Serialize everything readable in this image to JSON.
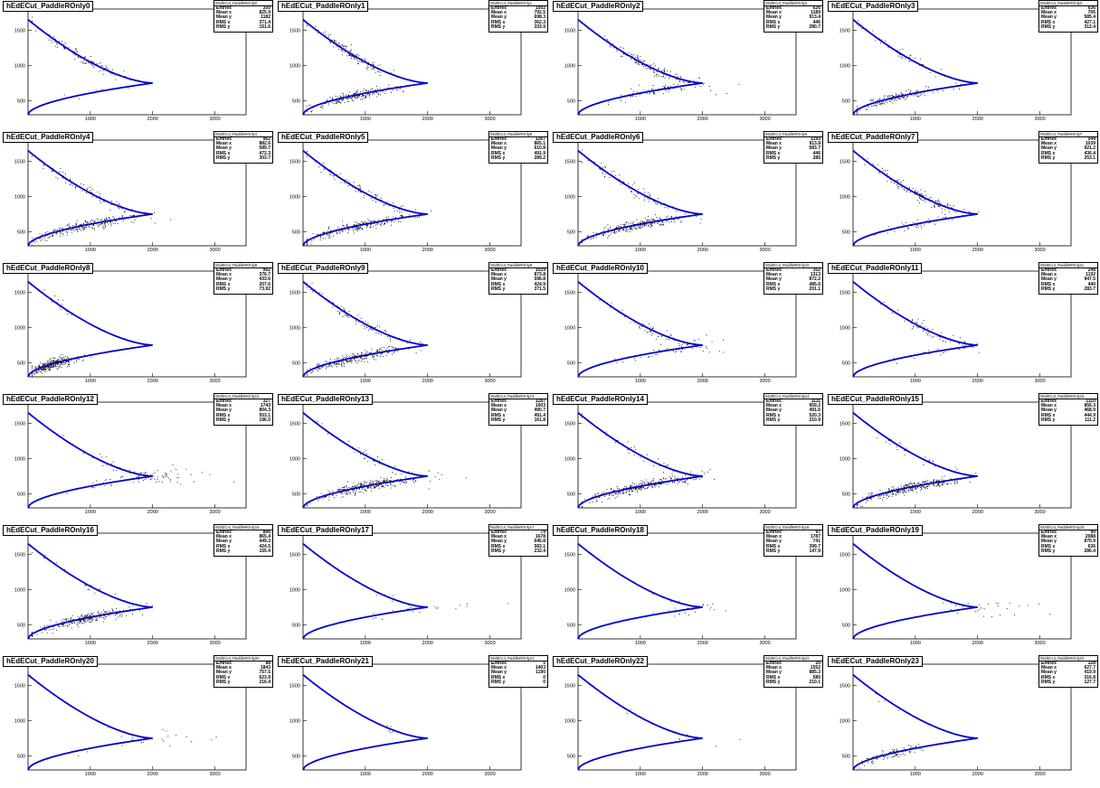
{
  "axis": {
    "x_ticks": [
      1000,
      2000,
      3000
    ],
    "y_ticks": [
      500,
      1000,
      1500
    ],
    "xlim": [
      0,
      3500
    ],
    "ylim": [
      300,
      1800
    ]
  },
  "stat_labels": {
    "entries": "Entries",
    "mean_x": "Mean x",
    "mean_y": "Mean y",
    "rms_x": "RMS x",
    "rms_y": "RMS y"
  },
  "colors": {
    "curve": "#0000cc",
    "points": "#000000",
    "frame": "#000000"
  },
  "chart_data": [
    {
      "type": "scatter",
      "title": "hEdECut_PaddleROnly0",
      "stats_name": "hEdECut_PaddleROnly0",
      "entries": "350",
      "mean_x": "825.9",
      "mean_y": "1182",
      "rms_x": "371.4",
      "rms_y": "151.6"
    },
    {
      "type": "scatter",
      "title": "hEdECut_PaddleROnly1",
      "stats_name": "hEdECut_PaddleROnly1",
      "entries": "1502",
      "mean_x": "792.5",
      "mean_y": "698.3",
      "rms_x": "362.3",
      "rms_y": "333.9"
    },
    {
      "type": "scatter",
      "title": "hEdECut_PaddleROnly2",
      "stats_name": "hEdECut_PaddleROnly2",
      "entries": "626",
      "mean_x": "1189",
      "mean_y": "913.4",
      "rms_x": "446",
      "rms_y": "280.7"
    },
    {
      "type": "scatter",
      "title": "hEdECut_PaddleROnly3",
      "stats_name": "hEdECut_PaddleROnly3",
      "entries": "636",
      "mean_x": "706",
      "mean_y": "585.4",
      "rms_x": "427.1",
      "rms_y": "312.4"
    },
    {
      "type": "scatter",
      "title": "hEdECut_PaddleROnly4",
      "stats_name": "hEdECut_PaddleROnly4",
      "entries": "962",
      "mean_x": "882.6",
      "mean_y": "589.7",
      "rms_x": "472.3",
      "rms_y": "303.7"
    },
    {
      "type": "scatter",
      "title": "hEdECut_PaddleROnly5",
      "stats_name": "hEdECut_PaddleROnly5",
      "entries": "1267",
      "mean_x": "865.1",
      "mean_y": "610.8",
      "rms_x": "491.9",
      "rms_y": "289.2"
    },
    {
      "type": "scatter",
      "title": "hEdECut_PaddleROnly6",
      "stats_name": "hEdECut_PaddleROnly6",
      "entries": "1193",
      "mean_x": "913.8",
      "mean_y": "583.7",
      "rms_x": "446",
      "rms_y": "285"
    },
    {
      "type": "scatter",
      "title": "hEdECut_PaddleROnly7",
      "stats_name": "hEdECut_PaddleROnly7",
      "entries": "544",
      "mean_x": "1039",
      "mean_y": "921.2",
      "rms_x": "436.4",
      "rms_y": "253.1"
    },
    {
      "type": "scatter",
      "title": "hEdECut_PaddleROnly8",
      "stats_name": "hEdECut_PaddleROnly8",
      "entries": "992",
      "mean_x": "376.7",
      "mean_y": "433.6",
      "rms_x": "207.6",
      "rms_y": "73.92"
    },
    {
      "type": "scatter",
      "title": "hEdECut_PaddleROnly9",
      "stats_name": "hEdECut_PaddleROnly9",
      "entries": "1029",
      "mean_x": "873.8",
      "mean_y": "596.8",
      "rms_x": "424.9",
      "rms_y": "371.5"
    },
    {
      "type": "scatter",
      "title": "hEdECut_PaddleROnly10",
      "stats_name": "hEdECut_PaddleROnly10",
      "entries": "352",
      "mean_x": "1313",
      "mean_y": "872.2",
      "rms_x": "485.6",
      "rms_y": "201.1"
    },
    {
      "type": "scatter",
      "title": "hEdECut_PaddleROnly11",
      "stats_name": "hEdECut_PaddleROnly11",
      "entries": "248",
      "mean_x": "1192",
      "mean_y": "947.5",
      "rms_x": "440",
      "rms_y": "283.7"
    },
    {
      "type": "scatter",
      "title": "hEdECut_PaddleROnly12",
      "stats_name": "hEdECut_PaddleROnly12",
      "entries": "327",
      "mean_x": "1743",
      "mean_y": "804.3",
      "rms_x": "553.1",
      "rms_y": "196.5"
    },
    {
      "type": "scatter",
      "title": "hEdECut_PaddleROnly13",
      "stats_name": "hEdECut_PaddleROnly13",
      "entries": "1287",
      "mean_x": "1003",
      "mean_y": "490.7",
      "rms_x": "491.4",
      "rms_y": "161.8"
    },
    {
      "type": "scatter",
      "title": "hEdECut_PaddleROnly14",
      "stats_name": "hEdECut_PaddleROnly14",
      "entries": "1111",
      "mean_x": "959.2",
      "mean_y": "491.6",
      "rms_x": "520.3",
      "rms_y": "210.9"
    },
    {
      "type": "scatter",
      "title": "hEdECut_PaddleROnly15",
      "stats_name": "hEdECut_PaddleROnly15",
      "entries": "1110",
      "mean_x": "856.3",
      "mean_y": "468.9",
      "rms_x": "444.9",
      "rms_y": "111.2"
    },
    {
      "type": "scatter",
      "title": "hEdECut_PaddleROnly16",
      "stats_name": "hEdECut_PaddleROnly16",
      "entries": "896",
      "mean_x": "865.4",
      "mean_y": "449.3",
      "rms_x": "424.5",
      "rms_y": "155.4"
    },
    {
      "type": "scatter",
      "title": "hEdECut_PaddleROnly17",
      "stats_name": "hEdECut_PaddleROnly17",
      "entries": "79",
      "mean_x": "1678",
      "mean_y": "646.8",
      "rms_x": "583.1",
      "rms_y": "232.4"
    },
    {
      "type": "scatter",
      "title": "hEdECut_PaddleROnly18",
      "stats_name": "hEdECut_PaddleROnly18",
      "entries": "97",
      "mean_x": "1787",
      "mean_y": "741",
      "rms_x": "399.7",
      "rms_y": "147.9"
    },
    {
      "type": "scatter",
      "title": "hEdECut_PaddleROnly19",
      "stats_name": "hEdECut_PaddleROnly19",
      "entries": "90",
      "mean_x": "2088",
      "mean_y": "870.9",
      "rms_x": "636",
      "rms_y": "286.4"
    },
    {
      "type": "scatter",
      "title": "hEdECut_PaddleROnly20",
      "stats_name": "hEdECut_PaddleROnly20",
      "entries": "88",
      "mean_x": "1843",
      "mean_y": "757.5",
      "rms_x": "623.9",
      "rms_y": "216.4"
    },
    {
      "type": "scatter",
      "title": "hEdECut_PaddleROnly21",
      "stats_name": "hEdECut_PaddleROnly21",
      "entries": "1",
      "mean_x": "1403",
      "mean_y": "1190",
      "rms_x": "0",
      "rms_y": "0"
    },
    {
      "type": "scatter",
      "title": "hEdECut_PaddleROnly22",
      "stats_name": "hEdECut_PaddleROnly22",
      "entries": "20",
      "mean_x": "1552",
      "mean_y": "885.3",
      "rms_x": "580",
      "rms_y": "210.1"
    },
    {
      "type": "scatter",
      "title": "hEdECut_PaddleROnly23",
      "stats_name": "hEdECut_PaddleROnly23",
      "entries": "328",
      "mean_x": "627.7",
      "mean_y": "419.9",
      "rms_x": "316.8",
      "rms_y": "127.7"
    }
  ]
}
